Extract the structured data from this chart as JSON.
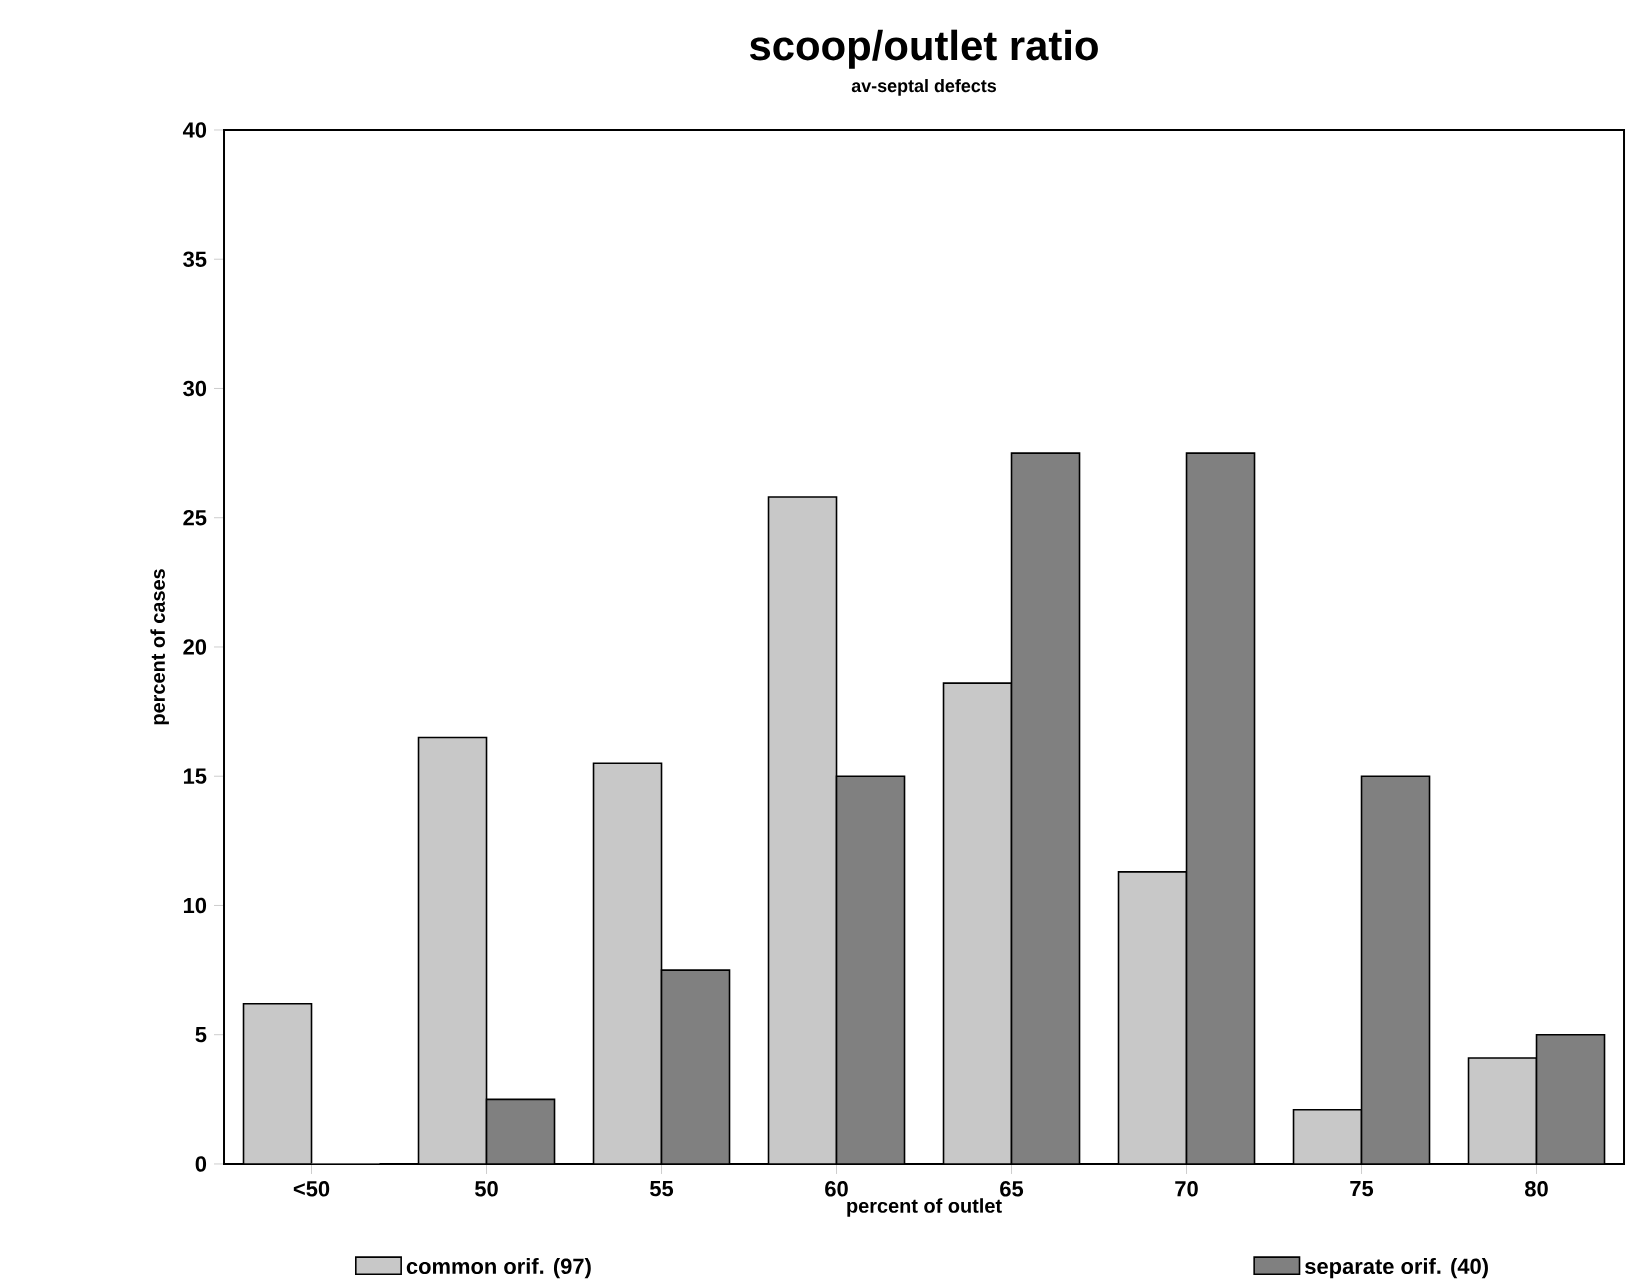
{
  "chart_data": {
    "type": "bar",
    "title": "scoop/outlet ratio",
    "subtitle": "av-septal defects",
    "xlabel": "percent of outlet",
    "ylabel": "percent of cases",
    "categories": [
      "<50",
      "50",
      "55",
      "60",
      "65",
      "70",
      "75",
      "80"
    ],
    "series": [
      {
        "name": "common orif. (97)",
        "color": "#c8c8c8",
        "values": [
          6.2,
          16.5,
          15.5,
          25.8,
          18.6,
          11.3,
          2.1,
          4.1
        ]
      },
      {
        "name": "separate orif. (40)",
        "color": "#808080",
        "values": [
          0,
          2.5,
          7.5,
          15,
          27.5,
          27.5,
          15,
          5
        ]
      }
    ],
    "ylim": [
      0,
      40
    ],
    "yticks": [
      0,
      5,
      10,
      15,
      20,
      25,
      30,
      35,
      40
    ],
    "grid": false,
    "legend": "bottom"
  }
}
